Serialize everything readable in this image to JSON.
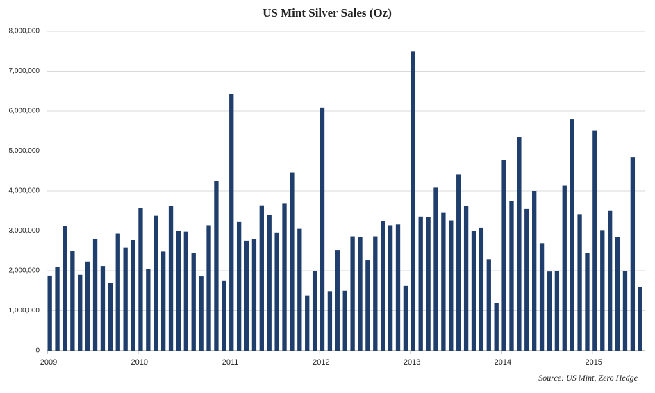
{
  "chart_data": {
    "type": "bar",
    "title": "US Mint Silver Sales (Oz)",
    "categories": [
      "2009",
      null,
      null,
      null,
      null,
      null,
      null,
      null,
      null,
      null,
      null,
      null,
      "2010",
      null,
      null,
      null,
      null,
      null,
      null,
      null,
      null,
      null,
      null,
      null,
      "2011",
      null,
      null,
      null,
      null,
      null,
      null,
      null,
      null,
      null,
      null,
      null,
      "2012",
      null,
      null,
      null,
      null,
      null,
      null,
      null,
      null,
      null,
      null,
      null,
      "2013",
      null,
      null,
      null,
      null,
      null,
      null,
      null,
      null,
      null,
      null,
      null,
      "2014",
      null,
      null,
      null,
      null,
      null,
      null,
      null,
      null,
      null,
      null,
      null,
      "2015",
      null,
      null,
      null,
      null,
      null,
      null
    ],
    "values": [
      1880000,
      2100000,
      3120000,
      2500000,
      1900000,
      2230000,
      2800000,
      2120000,
      1700000,
      2930000,
      2580000,
      2770000,
      3580000,
      2040000,
      3380000,
      2480000,
      3620000,
      3000000,
      2980000,
      2440000,
      1860000,
      3140000,
      4250000,
      1760000,
      6420000,
      3220000,
      2750000,
      2800000,
      3640000,
      3400000,
      2960000,
      3680000,
      4460000,
      3050000,
      1380000,
      2000000,
      6090000,
      1490000,
      2520000,
      1500000,
      2860000,
      2840000,
      2260000,
      2860000,
      3240000,
      3140000,
      3160000,
      1620000,
      7490000,
      3360000,
      3350000,
      4080000,
      3450000,
      3260000,
      4410000,
      3620000,
      3000000,
      3080000,
      2290000,
      1190000,
      4770000,
      3740000,
      5350000,
      3550000,
      4000000,
      2690000,
      1980000,
      2000000,
      4130000,
      5790000,
      3420000,
      2450000,
      5520000,
      3020000,
      3500000,
      2840000,
      2000000,
      4850000,
      1600000
    ],
    "color": "#1f3e6b",
    "ylim": [
      0,
      8000000
    ],
    "yticks": [
      0,
      {
        "value": 1000000,
        "label": "1,000,000"
      },
      {
        "value": 2000000,
        "label": "2,000,000"
      },
      {
        "value": 3000000,
        "label": "3,000,000"
      },
      {
        "value": 4000000,
        "label": "4,000,000"
      },
      {
        "value": 5000000,
        "label": "5,000,000"
      },
      {
        "value": 6000000,
        "label": "6,000,000"
      },
      {
        "value": 7000000,
        "label": "7,000,000"
      },
      {
        "value": 8000000,
        "label": "8,000,000"
      }
    ],
    "grid": true,
    "source": "Source: US Mint, Zero Hedge"
  }
}
